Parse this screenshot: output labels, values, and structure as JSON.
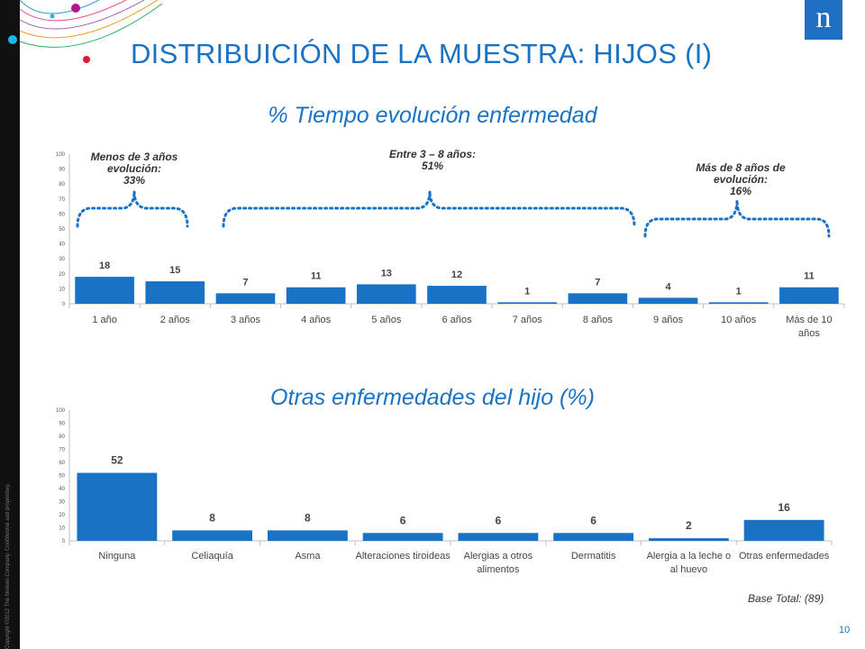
{
  "slide": {
    "title": "DISTRIBUICIÓN DE LA MUESTRA: HIJOS (I)",
    "copyright": "Copyright ©2012 The Nielsen Company. Confidential and proprietary.",
    "logo": "n",
    "base_note": "Base Total: (89)",
    "page_number": "10",
    "colors": {
      "bar": "#1a72c4",
      "title": "#1a72c4",
      "sidebar": "#111111",
      "logo_bg": "#1f6fc5",
      "accent_dot": "#e21838"
    }
  },
  "chart_data": [
    {
      "type": "bar",
      "title": "% Tiempo evolución enfermedad",
      "categories": [
        "1 año",
        "2 años",
        "3 años",
        "4 años",
        "5 años",
        "6 años",
        "7 años",
        "8 años",
        "9 años",
        "10 años",
        "Más de 10 años"
      ],
      "values": [
        18,
        15,
        7,
        11,
        13,
        12,
        1,
        7,
        4,
        1,
        11
      ],
      "ylim": [
        0,
        100
      ],
      "yticks": [
        0,
        10,
        20,
        30,
        40,
        50,
        60,
        70,
        80,
        90,
        100
      ],
      "grid": false,
      "annotations": [
        {
          "text": "Menos de 3 años evolución: 33%",
          "lines": [
            "Menos de 3 años",
            "evolución:",
            "33%"
          ],
          "group": "1 año – 2 años"
        },
        {
          "text": "Entre 3 – 8 años: 51%",
          "lines": [
            "Entre 3 – 8 años:",
            "51%"
          ],
          "group": "3 años – 8 años"
        },
        {
          "text": "Más de 8 años de evolución: 16%",
          "lines": [
            "Más de 8 años de",
            "evolución:",
            "16%"
          ],
          "group": "9 años – Más de 10 años"
        }
      ]
    },
    {
      "type": "bar",
      "title": "Otras enfermedades del hijo (%)",
      "categories": [
        "Ninguna",
        "Celiaquía",
        "Asma",
        "Alteraciones tiroideas",
        "Alergias a otros alimentos",
        "Dermatitis",
        "Alergia a la leche o al huevo",
        "Otras enfermedades"
      ],
      "values": [
        52,
        8,
        8,
        6,
        6,
        6,
        2,
        16
      ],
      "ylim": [
        0,
        100
      ],
      "yticks": [
        0,
        10,
        20,
        30,
        40,
        50,
        60,
        70,
        80,
        90,
        100
      ],
      "grid": false
    }
  ]
}
